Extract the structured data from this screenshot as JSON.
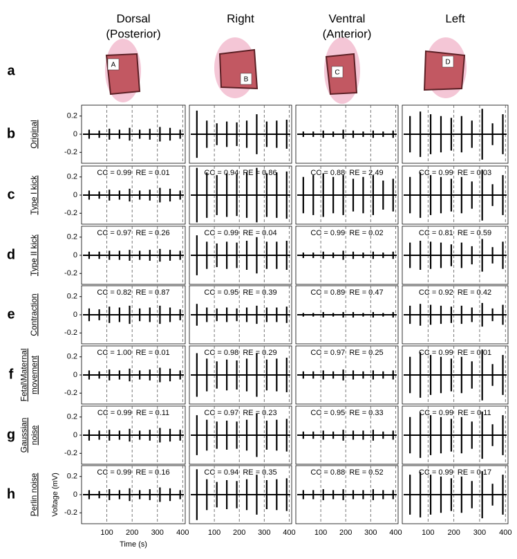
{
  "header": {
    "column_titles": [
      [
        "Dorsal",
        "(Posterior)"
      ],
      [
        "Right"
      ],
      [
        "Ventral",
        "(Anterior)"
      ],
      [
        "Left"
      ]
    ],
    "region_labels": [
      "A",
      "B",
      "C",
      "D"
    ],
    "row_letters": [
      "a",
      "b",
      "c",
      "d",
      "e",
      "f",
      "g",
      "h"
    ],
    "row_titles": [
      [
        "Original"
      ],
      [
        "Type I kick"
      ],
      [
        "Type II kick"
      ],
      [
        "Contraction"
      ],
      [
        "Fetal\\Maternal",
        "movement"
      ],
      [
        "Gaussian",
        "noise"
      ],
      [
        "Perlin noise"
      ]
    ]
  },
  "chart_data": [
    {
      "type": "spikes",
      "x": [
        30,
        70,
        110,
        150,
        190,
        230,
        270,
        310,
        350,
        390
      ],
      "values": [
        0.05,
        0.04,
        0.06,
        0.05,
        0.07,
        0.05,
        0.06,
        0.08,
        0.07,
        0.05
      ],
      "xlim": [
        0,
        410
      ],
      "ylim": [
        -0.32,
        0.32
      ],
      "xticks": [
        100,
        200,
        300,
        400
      ],
      "yticks": [
        -0.2,
        0,
        0.2
      ],
      "grid": true,
      "color": "#000000"
    },
    {
      "type": "spikes",
      "x": [
        30,
        70,
        110,
        150,
        190,
        230,
        270,
        310,
        350,
        390
      ],
      "values": [
        0.26,
        0.15,
        0.12,
        0.14,
        0.13,
        0.15,
        0.22,
        0.14,
        0.15,
        0.16
      ],
      "xlim": [
        0,
        410
      ],
      "ylim": [
        -0.32,
        0.32
      ],
      "xticks": [
        100,
        200,
        300,
        400
      ],
      "grid": true,
      "color": "#000000"
    },
    {
      "type": "spikes",
      "x": [
        30,
        70,
        110,
        150,
        190,
        230,
        270,
        310,
        350,
        390
      ],
      "values": [
        0.03,
        0.03,
        0.04,
        0.03,
        0.05,
        0.04,
        0.03,
        0.04,
        0.03,
        0.04
      ],
      "xlim": [
        0,
        410
      ],
      "ylim": [
        -0.32,
        0.32
      ],
      "xticks": [
        100,
        200,
        300,
        400
      ],
      "grid": true,
      "color": "#000000"
    },
    {
      "type": "spikes",
      "x": [
        30,
        70,
        110,
        150,
        190,
        230,
        270,
        310,
        350,
        390
      ],
      "values": [
        0.2,
        0.25,
        0.22,
        0.2,
        0.18,
        0.2,
        0.15,
        0.28,
        0.12,
        0.22
      ],
      "xlim": [
        0,
        410
      ],
      "ylim": [
        -0.32,
        0.32
      ],
      "xticks": [
        100,
        200,
        300,
        400
      ],
      "grid": true,
      "color": "#000000"
    },
    {
      "type": "spikes",
      "annotation": "CC = 0.99  RE = 0.01",
      "x": [
        30,
        70,
        110,
        150,
        190,
        230,
        270,
        310,
        350,
        390
      ],
      "values": [
        0.05,
        0.04,
        0.06,
        0.05,
        0.07,
        0.05,
        0.06,
        0.08,
        0.07,
        0.05
      ],
      "xlim": [
        0,
        410
      ],
      "ylim": [
        -0.32,
        0.32
      ],
      "xticks": [
        100,
        200,
        300,
        400
      ],
      "yticks": [
        -0.2,
        0,
        0.2
      ],
      "grid": true,
      "color": "#000000"
    },
    {
      "type": "spikes",
      "annotation": "CC = 0.94  RE = 0.86",
      "x": [
        30,
        70,
        110,
        150,
        190,
        230,
        270,
        310,
        350,
        390
      ],
      "values": [
        0.3,
        0.25,
        0.22,
        0.24,
        0.23,
        0.25,
        0.3,
        0.24,
        0.25,
        0.26
      ],
      "xlim": [
        0,
        410
      ],
      "ylim": [
        -0.32,
        0.32
      ],
      "xticks": [
        100,
        200,
        300,
        400
      ],
      "grid": true,
      "color": "#000000"
    },
    {
      "type": "spikes",
      "annotation": "CC = 0.88  RE = 2.49",
      "x": [
        30,
        70,
        110,
        150,
        190,
        230,
        270,
        310,
        350,
        390
      ],
      "values": [
        0.2,
        0.22,
        0.24,
        0.2,
        0.22,
        0.18,
        0.2,
        0.22,
        0.16,
        0.18
      ],
      "xlim": [
        0,
        410
      ],
      "ylim": [
        -0.32,
        0.32
      ],
      "xticks": [
        100,
        200,
        300,
        400
      ],
      "grid": true,
      "color": "#000000"
    },
    {
      "type": "spikes",
      "annotation": "CC = 0.99  RE = 0.03",
      "x": [
        30,
        70,
        110,
        150,
        190,
        230,
        270,
        310,
        350,
        390
      ],
      "values": [
        0.2,
        0.25,
        0.22,
        0.2,
        0.18,
        0.2,
        0.15,
        0.28,
        0.12,
        0.22
      ],
      "xlim": [
        0,
        410
      ],
      "ylim": [
        -0.32,
        0.32
      ],
      "xticks": [
        100,
        200,
        300,
        400
      ],
      "grid": true,
      "color": "#000000"
    },
    {
      "type": "spikes",
      "annotation": "CC = 0.97  RE = 0.26",
      "x": [
        30,
        70,
        110,
        150,
        190,
        230,
        270,
        310,
        350,
        390
      ],
      "values": [
        0.04,
        0.04,
        0.05,
        0.05,
        0.06,
        0.05,
        0.06,
        0.07,
        0.06,
        0.05
      ],
      "xlim": [
        0,
        410
      ],
      "ylim": [
        -0.32,
        0.32
      ],
      "xticks": [
        100,
        200,
        300,
        400
      ],
      "yticks": [
        -0.2,
        0,
        0.2
      ],
      "grid": true,
      "color": "#000000"
    },
    {
      "type": "spikes",
      "annotation": "CC = 0.99  RE = 0.04",
      "x": [
        30,
        70,
        110,
        150,
        190,
        230,
        270,
        310,
        350,
        390
      ],
      "values": [
        0.22,
        0.15,
        0.13,
        0.15,
        0.14,
        0.16,
        0.2,
        0.15,
        0.15,
        0.16
      ],
      "xlim": [
        0,
        410
      ],
      "ylim": [
        -0.32,
        0.32
      ],
      "xticks": [
        100,
        200,
        300,
        400
      ],
      "grid": true,
      "color": "#000000"
    },
    {
      "type": "spikes",
      "annotation": "CC = 0.99  RE = 0.02",
      "x": [
        30,
        70,
        110,
        150,
        190,
        230,
        270,
        310,
        350,
        390
      ],
      "values": [
        0.03,
        0.03,
        0.04,
        0.03,
        0.05,
        0.04,
        0.03,
        0.04,
        0.03,
        0.04
      ],
      "xlim": [
        0,
        410
      ],
      "ylim": [
        -0.32,
        0.32
      ],
      "xticks": [
        100,
        200,
        300,
        400
      ],
      "grid": true,
      "color": "#000000"
    },
    {
      "type": "spikes",
      "annotation": "CC = 0.81  RE = 0.59",
      "x": [
        30,
        70,
        110,
        150,
        190,
        230,
        270,
        310,
        350,
        390
      ],
      "values": [
        0.14,
        0.16,
        0.15,
        0.14,
        0.12,
        0.14,
        0.1,
        0.18,
        0.09,
        0.15
      ],
      "xlim": [
        0,
        410
      ],
      "ylim": [
        -0.32,
        0.32
      ],
      "xticks": [
        100,
        200,
        300,
        400
      ],
      "grid": true,
      "color": "#000000"
    },
    {
      "type": "spikes",
      "annotation": "CC = 0.82  RE = 0.87",
      "x": [
        30,
        70,
        110,
        150,
        190,
        230,
        270,
        310,
        350,
        390
      ],
      "values": [
        0.07,
        0.06,
        0.09,
        0.08,
        0.1,
        0.07,
        0.08,
        0.1,
        0.08,
        0.06
      ],
      "xlim": [
        0,
        410
      ],
      "ylim": [
        -0.32,
        0.32
      ],
      "xticks": [
        100,
        200,
        300,
        400
      ],
      "yticks": [
        -0.2,
        0,
        0.2
      ],
      "grid": true,
      "color": "#000000"
    },
    {
      "type": "spikes",
      "annotation": "CC = 0.95  RE = 0.39",
      "x": [
        30,
        70,
        110,
        150,
        190,
        230,
        270,
        310,
        350,
        390
      ],
      "values": [
        0.12,
        0.08,
        0.07,
        0.08,
        0.07,
        0.08,
        0.1,
        0.08,
        0.08,
        0.09
      ],
      "xlim": [
        0,
        410
      ],
      "ylim": [
        -0.32,
        0.32
      ],
      "xticks": [
        100,
        200,
        300,
        400
      ],
      "grid": true,
      "color": "#000000"
    },
    {
      "type": "spikes",
      "annotation": "CC = 0.89  RE = 0.47",
      "x": [
        30,
        70,
        110,
        150,
        190,
        230,
        270,
        310,
        350,
        390
      ],
      "values": [
        0.02,
        0.02,
        0.03,
        0.02,
        0.03,
        0.03,
        0.02,
        0.03,
        0.02,
        0.03
      ],
      "xlim": [
        0,
        410
      ],
      "ylim": [
        -0.32,
        0.32
      ],
      "xticks": [
        100,
        200,
        300,
        400
      ],
      "grid": true,
      "color": "#000000"
    },
    {
      "type": "spikes",
      "annotation": "CC = 0.92  RE = 0.42",
      "x": [
        30,
        70,
        110,
        150,
        190,
        230,
        270,
        310,
        350,
        390
      ],
      "values": [
        0.1,
        0.12,
        0.11,
        0.1,
        0.09,
        0.1,
        0.08,
        0.13,
        0.07,
        0.11
      ],
      "xlim": [
        0,
        410
      ],
      "ylim": [
        -0.32,
        0.32
      ],
      "xticks": [
        100,
        200,
        300,
        400
      ],
      "grid": true,
      "color": "#000000"
    },
    {
      "type": "spikes",
      "annotation": "CC = 1.00  RE = 0.01",
      "x": [
        30,
        70,
        110,
        150,
        190,
        230,
        270,
        310,
        350,
        390
      ],
      "values": [
        0.05,
        0.04,
        0.06,
        0.05,
        0.07,
        0.05,
        0.06,
        0.08,
        0.07,
        0.05
      ],
      "xlim": [
        0,
        410
      ],
      "ylim": [
        -0.32,
        0.32
      ],
      "xticks": [
        100,
        200,
        300,
        400
      ],
      "yticks": [
        -0.2,
        0,
        0.2
      ],
      "grid": true,
      "color": "#000000"
    },
    {
      "type": "spikes",
      "annotation": "CC = 0.98  RE = 0.29",
      "x": [
        30,
        70,
        110,
        150,
        190,
        230,
        270,
        310,
        350,
        390
      ],
      "values": [
        0.24,
        0.18,
        0.15,
        0.17,
        0.16,
        0.18,
        0.24,
        0.17,
        0.18,
        0.19
      ],
      "xlim": [
        0,
        410
      ],
      "ylim": [
        -0.32,
        0.32
      ],
      "xticks": [
        100,
        200,
        300,
        400
      ],
      "grid": true,
      "color": "#000000"
    },
    {
      "type": "spikes",
      "annotation": "CC = 0.97  RE = 0.25",
      "x": [
        30,
        70,
        110,
        150,
        190,
        230,
        270,
        310,
        350,
        390
      ],
      "values": [
        0.04,
        0.04,
        0.05,
        0.04,
        0.06,
        0.05,
        0.04,
        0.05,
        0.04,
        0.05
      ],
      "xlim": [
        0,
        410
      ],
      "ylim": [
        -0.32,
        0.32
      ],
      "xticks": [
        100,
        200,
        300,
        400
      ],
      "grid": true,
      "color": "#000000"
    },
    {
      "type": "spikes",
      "annotation": "CC = 0.99  RE = 0.01",
      "x": [
        30,
        70,
        110,
        150,
        190,
        230,
        270,
        310,
        350,
        390
      ],
      "values": [
        0.2,
        0.25,
        0.22,
        0.2,
        0.18,
        0.2,
        0.15,
        0.28,
        0.12,
        0.22
      ],
      "xlim": [
        0,
        410
      ],
      "ylim": [
        -0.32,
        0.32
      ],
      "xticks": [
        100,
        200,
        300,
        400
      ],
      "grid": true,
      "color": "#000000"
    },
    {
      "type": "spikes",
      "annotation": "CC = 0.99  RE = 0.11",
      "x": [
        30,
        70,
        110,
        150,
        190,
        230,
        270,
        310,
        350,
        390
      ],
      "values": [
        0.06,
        0.05,
        0.06,
        0.05,
        0.07,
        0.05,
        0.06,
        0.08,
        0.07,
        0.06
      ],
      "xlim": [
        0,
        410
      ],
      "ylim": [
        -0.32,
        0.32
      ],
      "xticks": [
        100,
        200,
        300,
        400
      ],
      "yticks": [
        -0.2,
        0,
        0.2
      ],
      "grid": true,
      "color": "#000000"
    },
    {
      "type": "spikes",
      "annotation": "CC = 0.97  RE = 0.23",
      "x": [
        30,
        70,
        110,
        150,
        190,
        230,
        270,
        310,
        350,
        390
      ],
      "values": [
        0.22,
        0.17,
        0.15,
        0.16,
        0.15,
        0.17,
        0.24,
        0.16,
        0.17,
        0.18
      ],
      "xlim": [
        0,
        410
      ],
      "ylim": [
        -0.32,
        0.32
      ],
      "xticks": [
        100,
        200,
        300,
        400
      ],
      "grid": true,
      "color": "#000000"
    },
    {
      "type": "spikes",
      "annotation": "CC = 0.95  RE = 0.33",
      "x": [
        30,
        70,
        110,
        150,
        190,
        230,
        270,
        310,
        350,
        390
      ],
      "values": [
        0.04,
        0.04,
        0.05,
        0.04,
        0.06,
        0.05,
        0.05,
        0.06,
        0.04,
        0.05
      ],
      "xlim": [
        0,
        410
      ],
      "ylim": [
        -0.32,
        0.32
      ],
      "xticks": [
        100,
        200,
        300,
        400
      ],
      "grid": true,
      "color": "#000000"
    },
    {
      "type": "spikes",
      "annotation": "CC = 0.99  RE = 0.11",
      "x": [
        30,
        70,
        110,
        150,
        190,
        230,
        270,
        310,
        350,
        390
      ],
      "values": [
        0.2,
        0.25,
        0.22,
        0.2,
        0.18,
        0.2,
        0.15,
        0.26,
        0.12,
        0.22
      ],
      "xlim": [
        0,
        410
      ],
      "ylim": [
        -0.32,
        0.32
      ],
      "xticks": [
        100,
        200,
        300,
        400
      ],
      "grid": true,
      "color": "#000000"
    },
    {
      "type": "spikes",
      "annotation": "CC = 0.99  RE = 0.16",
      "xlabel": "Time (s)",
      "ylabel": "Voltage (mV)",
      "x": [
        30,
        70,
        110,
        150,
        190,
        230,
        270,
        310,
        350,
        390
      ],
      "values": [
        0.05,
        0.04,
        0.06,
        0.05,
        0.07,
        0.05,
        0.06,
        0.08,
        0.07,
        0.05
      ],
      "xlim": [
        0,
        410
      ],
      "ylim": [
        -0.32,
        0.32
      ],
      "xticks": [
        100,
        200,
        300,
        400
      ],
      "yticks": [
        -0.2,
        0,
        0.2
      ],
      "grid": true,
      "color": "#000000"
    },
    {
      "type": "spikes",
      "annotation": "CC = 0.94  RE = 0.35",
      "x": [
        30,
        70,
        110,
        150,
        190,
        230,
        270,
        310,
        350,
        390
      ],
      "values": [
        0.28,
        0.17,
        0.14,
        0.16,
        0.15,
        0.17,
        0.22,
        0.16,
        0.17,
        0.18
      ],
      "xlim": [
        0,
        410
      ],
      "ylim": [
        -0.32,
        0.32
      ],
      "xticks": [
        100,
        200,
        300,
        400
      ],
      "grid": true,
      "color": "#000000"
    },
    {
      "type": "spikes",
      "annotation": "CC = 0.88  RE = 0.52",
      "x": [
        30,
        70,
        110,
        150,
        190,
        230,
        270,
        310,
        350,
        390
      ],
      "values": [
        0.05,
        0.05,
        0.06,
        0.05,
        0.06,
        0.05,
        0.05,
        0.06,
        0.05,
        0.05
      ],
      "xlim": [
        0,
        410
      ],
      "ylim": [
        -0.32,
        0.32
      ],
      "xticks": [
        100,
        200,
        300,
        400
      ],
      "grid": true,
      "color": "#000000"
    },
    {
      "type": "spikes",
      "annotation": "CC = 0.99  RE = 0.17",
      "x": [
        30,
        70,
        110,
        150,
        190,
        230,
        270,
        310,
        350,
        390
      ],
      "values": [
        0.22,
        0.25,
        0.22,
        0.2,
        0.18,
        0.2,
        0.15,
        0.26,
        0.12,
        0.22
      ],
      "xlim": [
        0,
        410
      ],
      "ylim": [
        -0.32,
        0.32
      ],
      "xticks": [
        100,
        200,
        300,
        400
      ],
      "grid": true,
      "color": "#000000"
    }
  ]
}
